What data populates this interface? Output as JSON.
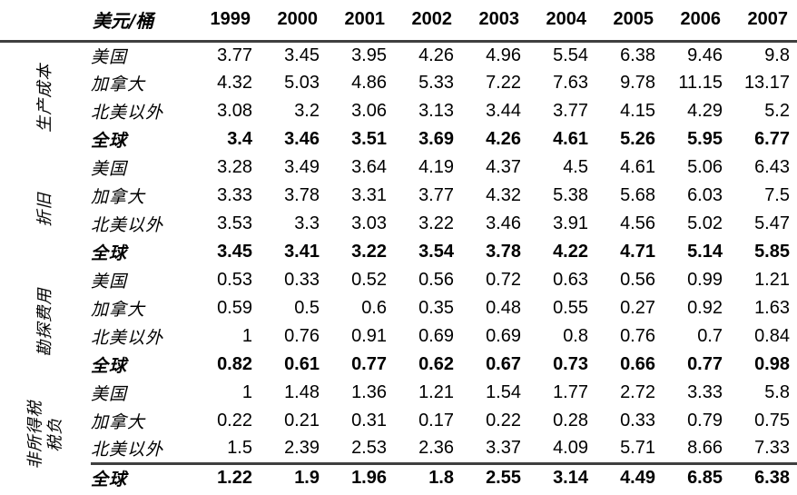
{
  "colors": {
    "background": "#ffffff",
    "text": "#000000",
    "rule": "#3f3f3f"
  },
  "table": {
    "unit_label": "美元/桶",
    "years": [
      "1999",
      "2000",
      "2001",
      "2002",
      "2003",
      "2004",
      "2005",
      "2006",
      "2007"
    ],
    "groups": [
      {
        "label": "生产成本",
        "rows": [
          {
            "label": "美国",
            "bold": false,
            "values": [
              "3.77",
              "3.45",
              "3.95",
              "4.26",
              "4.96",
              "5.54",
              "6.38",
              "9.46",
              "9.8"
            ]
          },
          {
            "label": "加拿大",
            "bold": false,
            "values": [
              "4.32",
              "5.03",
              "4.86",
              "5.33",
              "7.22",
              "7.63",
              "9.78",
              "11.15",
              "13.17"
            ]
          },
          {
            "label": "北美以外",
            "bold": false,
            "values": [
              "3.08",
              "3.2",
              "3.06",
              "3.13",
              "3.44",
              "3.77",
              "4.15",
              "4.29",
              "5.2"
            ]
          },
          {
            "label": "全球",
            "bold": true,
            "values": [
              "3.4",
              "3.46",
              "3.51",
              "3.69",
              "4.26",
              "4.61",
              "5.26",
              "5.95",
              "6.77"
            ]
          }
        ]
      },
      {
        "label": "折旧",
        "rows": [
          {
            "label": "美国",
            "bold": false,
            "values": [
              "3.28",
              "3.49",
              "3.64",
              "4.19",
              "4.37",
              "4.5",
              "4.61",
              "5.06",
              "6.43"
            ]
          },
          {
            "label": "加拿大",
            "bold": false,
            "values": [
              "3.33",
              "3.78",
              "3.31",
              "3.77",
              "4.32",
              "5.38",
              "5.68",
              "6.03",
              "7.5"
            ]
          },
          {
            "label": "北美以外",
            "bold": false,
            "values": [
              "3.53",
              "3.3",
              "3.03",
              "3.22",
              "3.46",
              "3.91",
              "4.56",
              "5.02",
              "5.47"
            ]
          },
          {
            "label": "全球",
            "bold": true,
            "values": [
              "3.45",
              "3.41",
              "3.22",
              "3.54",
              "3.78",
              "4.22",
              "4.71",
              "5.14",
              "5.85"
            ]
          }
        ]
      },
      {
        "label": "勘探费用",
        "rows": [
          {
            "label": "美国",
            "bold": false,
            "values": [
              "0.53",
              "0.33",
              "0.52",
              "0.56",
              "0.72",
              "0.63",
              "0.56",
              "0.99",
              "1.21"
            ]
          },
          {
            "label": "加拿大",
            "bold": false,
            "values": [
              "0.59",
              "0.5",
              "0.6",
              "0.35",
              "0.48",
              "0.55",
              "0.27",
              "0.92",
              "1.63"
            ]
          },
          {
            "label": "北美以外",
            "bold": false,
            "values": [
              "1",
              "0.76",
              "0.91",
              "0.69",
              "0.69",
              "0.8",
              "0.76",
              "0.7",
              "0.84"
            ]
          },
          {
            "label": "全球",
            "bold": true,
            "values": [
              "0.82",
              "0.61",
              "0.77",
              "0.62",
              "0.67",
              "0.73",
              "0.66",
              "0.77",
              "0.98"
            ]
          }
        ]
      },
      {
        "label": "非所得税\n税负",
        "rows": [
          {
            "label": "美国",
            "bold": false,
            "values": [
              "1",
              "1.48",
              "1.36",
              "1.21",
              "1.54",
              "1.77",
              "2.72",
              "3.33",
              "5.8"
            ]
          },
          {
            "label": "加拿大",
            "bold": false,
            "values": [
              "0.22",
              "0.21",
              "0.31",
              "0.17",
              "0.22",
              "0.28",
              "0.33",
              "0.79",
              "0.75"
            ]
          },
          {
            "label": "北美以外",
            "bold": false,
            "values": [
              "1.5",
              "2.39",
              "2.53",
              "2.36",
              "3.37",
              "4.09",
              "5.71",
              "8.66",
              "7.33"
            ]
          },
          {
            "label": "全球",
            "bold": true,
            "values": [
              "1.22",
              "1.9",
              "1.96",
              "1.8",
              "2.55",
              "3.14",
              "4.49",
              "6.85",
              "6.38"
            ]
          }
        ]
      }
    ]
  }
}
